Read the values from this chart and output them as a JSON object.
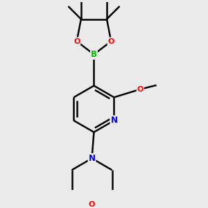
{
  "bg_color": "#ebebeb",
  "bond_color": "#000000",
  "bond_lw": 1.8,
  "atom_colors": {
    "B": "#00bb00",
    "O": "#ff0000",
    "N": "#0000ff",
    "C": "#000000"
  },
  "font_size": 8.5,
  "fig_w": 3.0,
  "fig_h": 3.0,
  "dpi": 100
}
